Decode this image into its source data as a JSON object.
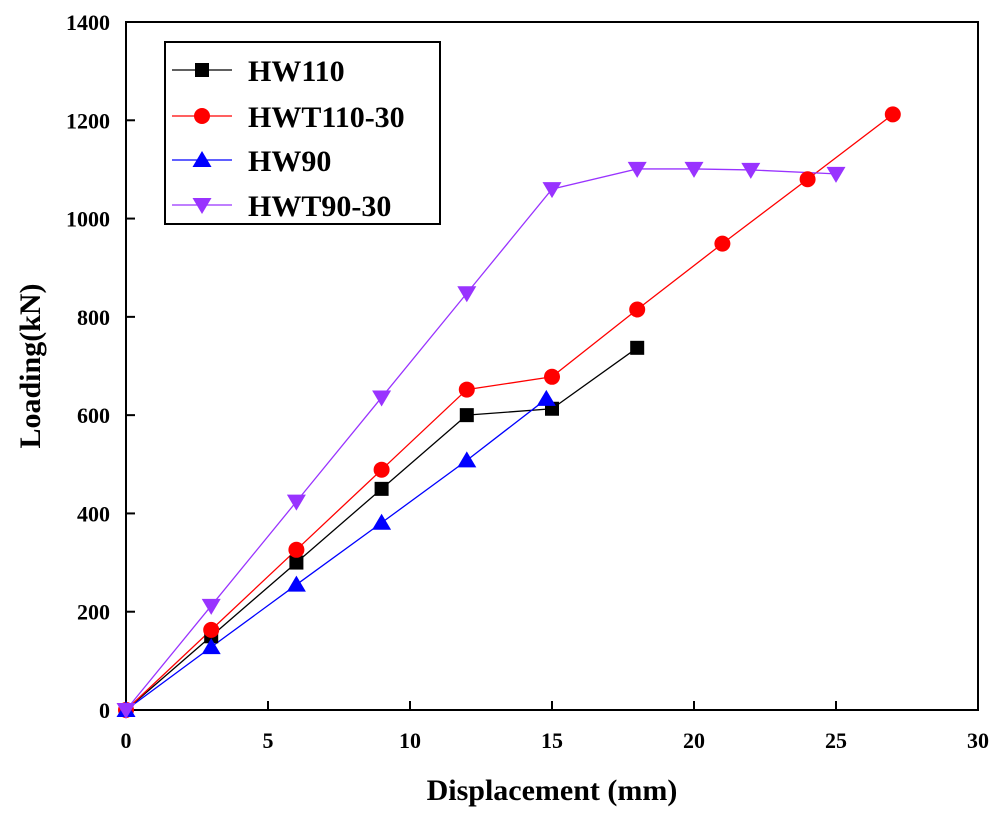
{
  "chart_data": {
    "type": "line",
    "title": "",
    "xlabel": "Displacement (mm)",
    "ylabel": "Loading(kN)",
    "xlim": [
      0,
      30
    ],
    "ylim": [
      0,
      1400
    ],
    "xticks": [
      0,
      5,
      10,
      15,
      20,
      25,
      30
    ],
    "yticks": [
      0,
      200,
      400,
      600,
      800,
      1000,
      1200,
      1400
    ],
    "grid": false,
    "legend_position": "top-left",
    "series": [
      {
        "name": "HW110",
        "marker": "square",
        "color": "#000000",
        "x": [
          0,
          3,
          6,
          9,
          12,
          15,
          18
        ],
        "y": [
          0,
          150,
          300,
          450,
          600,
          613,
          737
        ]
      },
      {
        "name": "HWT110-30",
        "marker": "circle",
        "color": "#ff0000",
        "x": [
          0,
          3,
          6,
          9,
          12,
          15,
          18,
          21,
          24,
          27
        ],
        "y": [
          0,
          163,
          326,
          489,
          652,
          678,
          815,
          949,
          1080,
          1212
        ]
      },
      {
        "name": "HW90",
        "marker": "triangle-up",
        "color": "#0000ff",
        "x": [
          0,
          3,
          6,
          9,
          12,
          14.8
        ],
        "y": [
          0,
          128,
          255,
          381,
          508,
          633
        ]
      },
      {
        "name": "HWT90-30",
        "marker": "triangle-down",
        "color": "#9933ff",
        "x": [
          0,
          3,
          6,
          9,
          12,
          15,
          18,
          20,
          22,
          25
        ],
        "y": [
          0,
          212,
          424,
          636,
          848,
          1060,
          1101,
          1101,
          1099,
          1091
        ]
      }
    ]
  }
}
